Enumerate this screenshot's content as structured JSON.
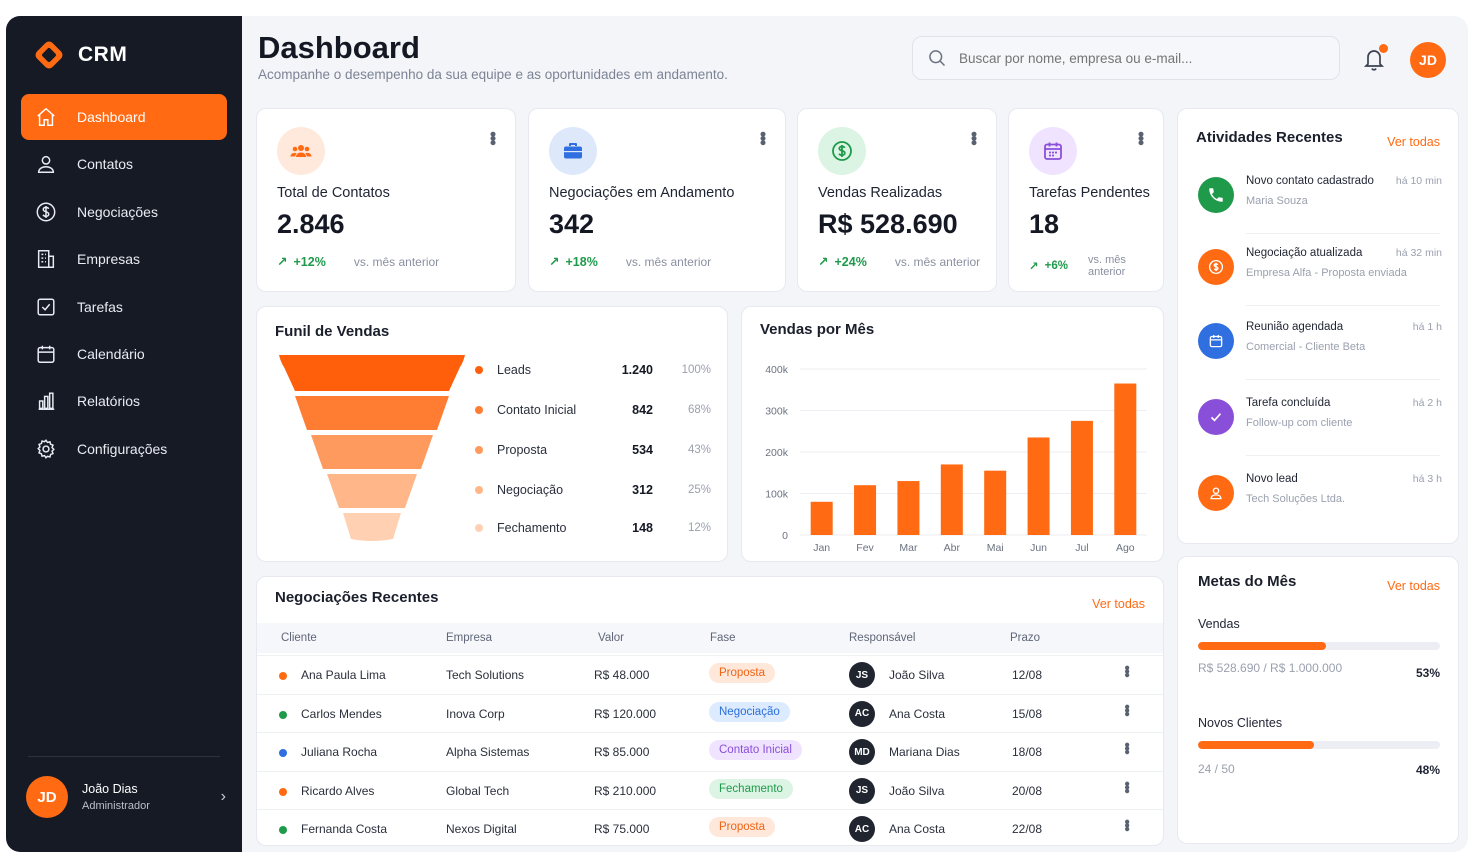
{
  "brand": {
    "name": "CRM"
  },
  "colors": {
    "accent": "#ff6a13",
    "sidebar": "#151a24",
    "positive": "#1f9a4b"
  },
  "sidebar": {
    "items": [
      {
        "label": "Dashboard",
        "icon": "home-icon",
        "active": true
      },
      {
        "label": "Contatos",
        "icon": "user-icon"
      },
      {
        "label": "Negociações",
        "icon": "dollar-icon"
      },
      {
        "label": "Empresas",
        "icon": "building-icon"
      },
      {
        "label": "Tarefas",
        "icon": "checkbox-icon"
      },
      {
        "label": "Calendário",
        "icon": "calendar-icon"
      },
      {
        "label": "Relatórios",
        "icon": "bar-chart-icon"
      },
      {
        "label": "Configurações",
        "icon": "gear-icon"
      }
    ],
    "user": {
      "initials": "JD",
      "name": "João Dias",
      "role": "Administrador"
    }
  },
  "header": {
    "title": "Dashboard",
    "subtitle": "Acompanhe o desempenho da sua equipe e as oportunidades em andamento.",
    "search_placeholder": "Buscar por nome, empresa ou e-mail...",
    "avatar_initials": "JD"
  },
  "stats": [
    {
      "label": "Total de Contatos",
      "value": "2.846",
      "trend": "+12%",
      "vs": "vs. mês anterior",
      "icon": "users-icon"
    },
    {
      "label": "Negociações em Andamento",
      "value": "342",
      "trend": "+18%",
      "vs": "vs. mês anterior",
      "icon": "briefcase-icon"
    },
    {
      "label": "Vendas Realizadas",
      "value": "R$ 528.690",
      "trend": "+24%",
      "vs": "vs. mês anterior",
      "icon": "dollar-coin-icon"
    },
    {
      "label": "Tarefas Pendentes",
      "value": "18",
      "trend": "+6%",
      "vs": "vs. mês anterior",
      "icon": "calendar-icon"
    }
  ],
  "funnel": {
    "title": "Funil de Vendas",
    "stages": [
      {
        "name": "Leads",
        "count": "1.240",
        "pct": "100%",
        "color": "#ff5f0a"
      },
      {
        "name": "Contato Inicial",
        "count": "842",
        "pct": "68%",
        "color": "#ff7d33"
      },
      {
        "name": "Proposta",
        "count": "534",
        "pct": "43%",
        "color": "#ff9a5e"
      },
      {
        "name": "Negociação",
        "count": "312",
        "pct": "25%",
        "color": "#ffb78a"
      },
      {
        "name": "Fechamento",
        "count": "148",
        "pct": "12%",
        "color": "#ffd0b2"
      }
    ]
  },
  "sales_chart": {
    "title": "Vendas por Mês"
  },
  "chart_data": {
    "type": "bar",
    "title": "Vendas por Mês",
    "categories": [
      "Jan",
      "Fev",
      "Mar",
      "Abr",
      "Mai",
      "Jun",
      "Jul",
      "Ago"
    ],
    "values": [
      80000,
      120000,
      130000,
      170000,
      155000,
      235000,
      275000,
      365000
    ],
    "yticks": [
      "0",
      "100k",
      "200k",
      "300k",
      "400k"
    ],
    "ylim": [
      0,
      400000
    ],
    "xlabel": "",
    "ylabel": "",
    "grid": true,
    "color": "#ff6a13"
  },
  "activities": {
    "title": "Atividades Recentes",
    "link": "Ver todas",
    "items": [
      {
        "title": "Novo contato cadastrado",
        "sub": "Maria Souza",
        "time": "há 10 min",
        "icon": "phone-icon",
        "color": "#1f9a4b"
      },
      {
        "title": "Negociação atualizada",
        "sub": "Empresa Alfa - Proposta enviada",
        "time": "há 32 min",
        "icon": "dollar-icon",
        "color": "#ff6a13"
      },
      {
        "title": "Reunião agendada",
        "sub": "Comercial - Cliente Beta",
        "time": "há 1 h",
        "icon": "calendar-icon",
        "color": "#2f6fe0"
      },
      {
        "title": "Tarefa concluída",
        "sub": "Follow-up com cliente",
        "time": "há 2 h",
        "icon": "check-icon",
        "color": "#8a4fd8"
      },
      {
        "title": "Novo lead",
        "sub": "Tech Soluções Ltda.",
        "time": "há 3 h",
        "icon": "user-icon",
        "color": "#ff6a13"
      }
    ]
  },
  "goals": {
    "title": "Metas do Mês",
    "link": "Ver todas",
    "items": [
      {
        "label": "Vendas",
        "text": "R$ 528.690 / R$ 1.000.000",
        "pct": "53%",
        "fraction": 0.53
      },
      {
        "label": "Novos Clientes",
        "text": "24 / 50",
        "pct": "48%",
        "fraction": 0.48
      }
    ]
  },
  "deals": {
    "title": "Negociações Recentes",
    "link": "Ver todas",
    "columns": [
      "Cliente",
      "Empresa",
      "Valor",
      "Fase",
      "Responsável",
      "Prazo"
    ],
    "rows": [
      {
        "client": "Ana Paula Lima",
        "dot": "#ff6a13",
        "company": "Tech Solutions",
        "value": "R$ 48.000",
        "stage": "Proposta",
        "stage_bg": "#ffe7d9",
        "stage_fg": "#f06418",
        "initials": "JS",
        "owner": "João Silva",
        "due": "12/08"
      },
      {
        "client": "Carlos Mendes",
        "dot": "#1f9a4b",
        "company": "Inova Corp",
        "value": "R$ 120.000",
        "stage": "Negociação",
        "stage_bg": "#dcebff",
        "stage_fg": "#2b6fd6",
        "initials": "AC",
        "owner": "Ana Costa",
        "due": "15/08"
      },
      {
        "client": "Juliana Rocha",
        "dot": "#2f6fe0",
        "company": "Alpha Sistemas",
        "value": "R$ 85.000",
        "stage": "Contato Inicial",
        "stage_bg": "#efe3ff",
        "stage_fg": "#8a4fd8",
        "initials": "MD",
        "owner": "Mariana Dias",
        "due": "18/08"
      },
      {
        "client": "Ricardo Alves",
        "dot": "#ff6a13",
        "company": "Global Tech",
        "value": "R$ 210.000",
        "stage": "Fechamento",
        "stage_bg": "#dcf4e4",
        "stage_fg": "#1f9a4b",
        "initials": "JS",
        "owner": "João Silva",
        "due": "20/08"
      },
      {
        "client": "Fernanda Costa",
        "dot": "#1f9a4b",
        "company": "Nexos Digital",
        "value": "R$ 75.000",
        "stage": "Proposta",
        "stage_bg": "#ffe7d9",
        "stage_fg": "#f06418",
        "initials": "AC",
        "owner": "Ana Costa",
        "due": "22/08"
      }
    ]
  }
}
